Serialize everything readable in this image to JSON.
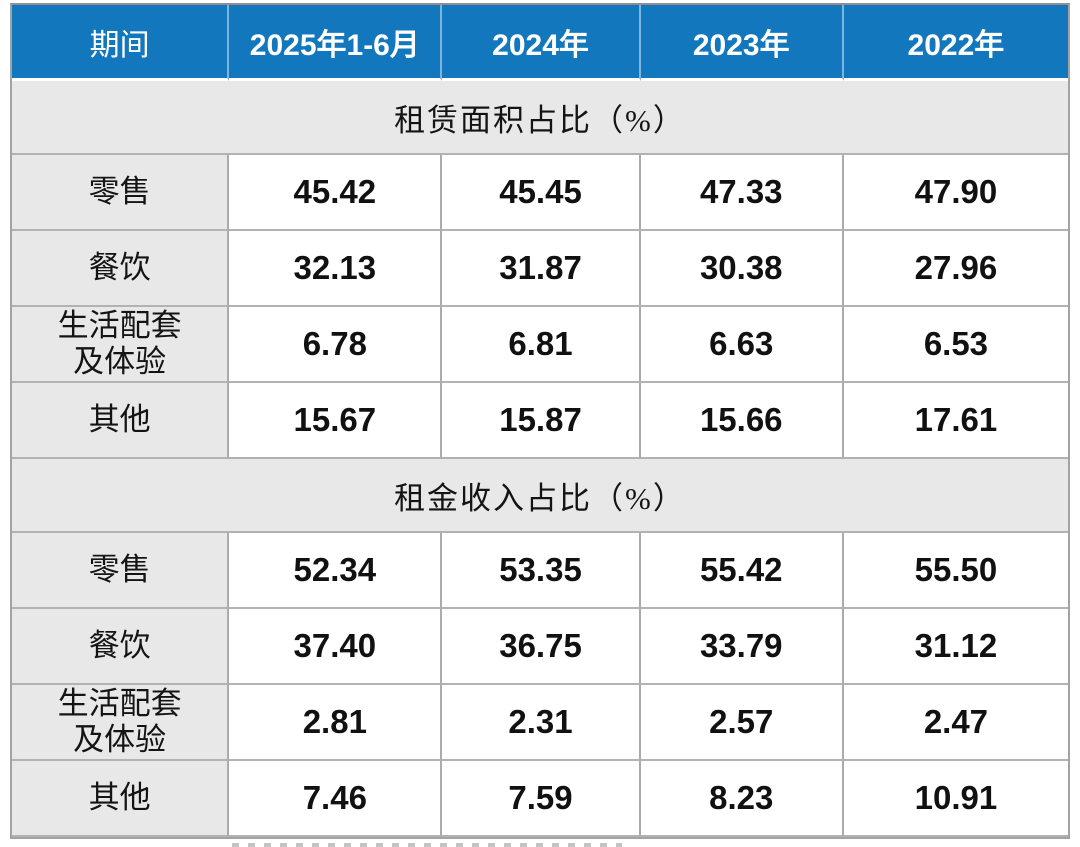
{
  "chart_data": {
    "type": "table",
    "title": "",
    "columns": [
      "期间",
      "2025年1-6月",
      "2024年",
      "2023年",
      "2022年"
    ],
    "sections": [
      {
        "title": "租赁面积占比（%）",
        "rows": [
          {
            "label": "零售",
            "values": [
              "45.42",
              "45.45",
              "47.33",
              "47.90"
            ]
          },
          {
            "label": "餐饮",
            "values": [
              "32.13",
              "31.87",
              "30.38",
              "27.96"
            ]
          },
          {
            "label": "生活配套\n及体验",
            "values": [
              "6.78",
              "6.81",
              "6.63",
              "6.53"
            ]
          },
          {
            "label": "其他",
            "values": [
              "15.67",
              "15.87",
              "15.66",
              "17.61"
            ]
          }
        ]
      },
      {
        "title": "租金收入占比（%）",
        "rows": [
          {
            "label": "零售",
            "values": [
              "52.34",
              "53.35",
              "55.42",
              "55.50"
            ]
          },
          {
            "label": "餐饮",
            "values": [
              "37.40",
              "36.75",
              "33.79",
              "31.12"
            ]
          },
          {
            "label": "生活配套\n及体验",
            "values": [
              "2.81",
              "2.31",
              "2.57",
              "2.47"
            ]
          },
          {
            "label": "其他",
            "values": [
              "7.46",
              "7.59",
              "8.23",
              "10.91"
            ]
          }
        ]
      }
    ]
  },
  "colors": {
    "header_bg": "#1377BD",
    "header_text": "#FFFFFF",
    "section_bg": "#E9E8E8",
    "label_bg": "#E9E8E8",
    "border": "#ABABAB",
    "value_text": "#111111"
  }
}
